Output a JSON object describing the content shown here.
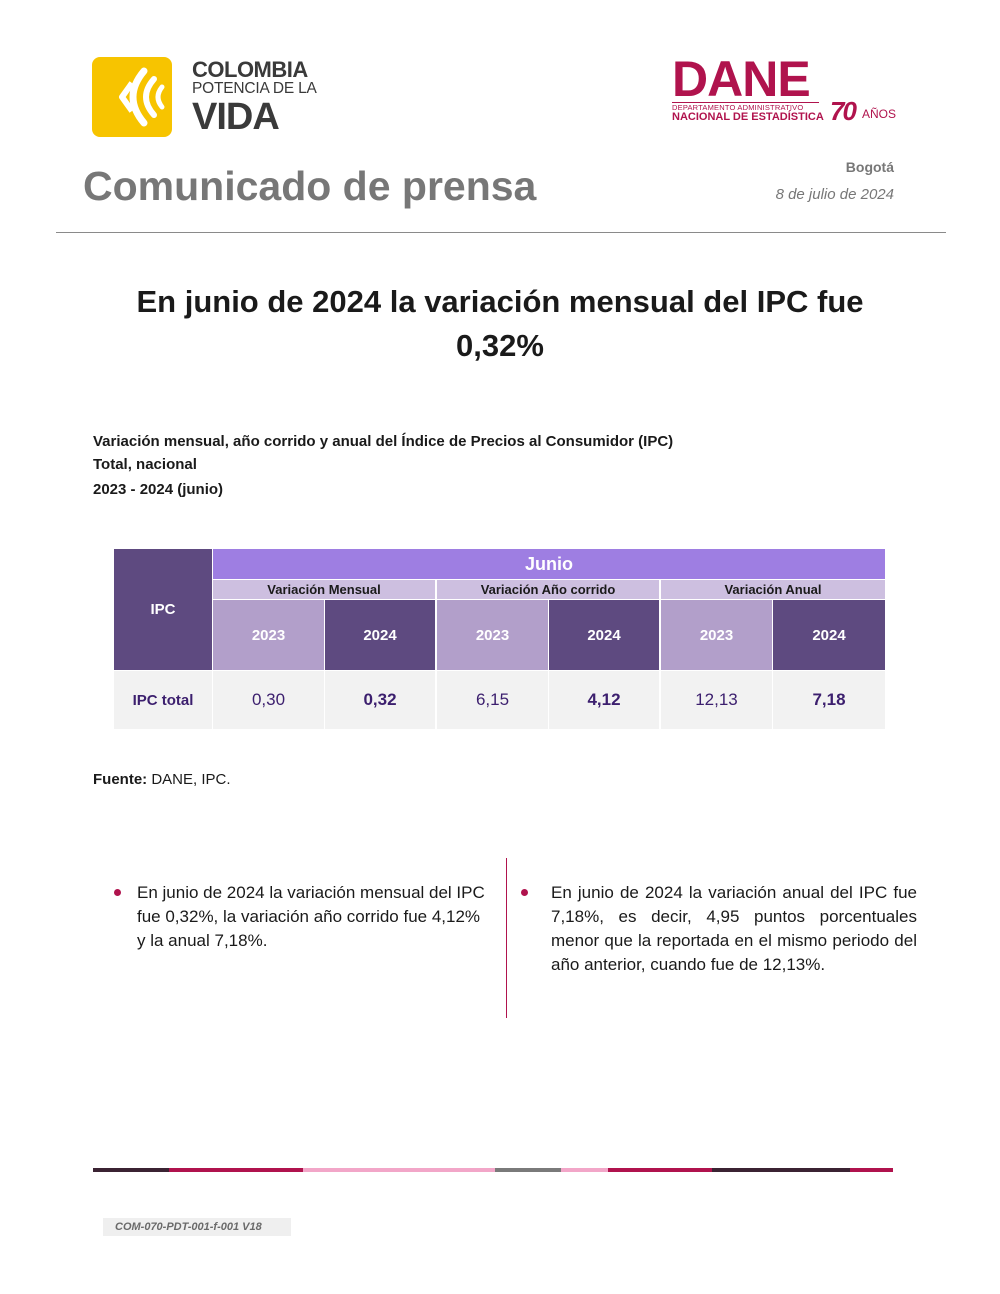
{
  "logos": {
    "colombia": {
      "line1": "COLOMBIA",
      "line2": "POTENCIA DE LA",
      "line3": "VIDA"
    },
    "dane": {
      "word": "DANE",
      "sub1": "DEPARTAMENTO ADMINISTRATIVO",
      "sub2": "NACIONAL DE ESTADÍSTICA",
      "anniversary": "70",
      "anniversary_label": "AÑOS"
    }
  },
  "header": {
    "title": "Comunicado de prensa",
    "city": "Bogotá",
    "date": "8 de julio de 2024"
  },
  "headline": "En junio de 2024 la variación mensual del IPC fue 0,32%",
  "table_caption": {
    "line1": "Variación mensual, año corrido y anual del Índice de Precios al Consumidor (IPC)",
    "line2": "Total, nacional",
    "line3": "2023 - 2024 (junio)"
  },
  "table": {
    "row_header": "IPC",
    "period": "Junio",
    "groups": [
      "Variación Mensual",
      "Variación Año corrido",
      "Variación Anual"
    ],
    "years": [
      "2023",
      "2024",
      "2023",
      "2024",
      "2023",
      "2024"
    ],
    "row_label": "IPC total",
    "values": [
      "0,30",
      "0,32",
      "6,15",
      "4,12",
      "12,13",
      "7,18"
    ]
  },
  "source": {
    "label": "Fuente:",
    "text": "DANE, IPC."
  },
  "bullets": {
    "left": "En junio de 2024 la variación mensual del IPC fue 0,32%, la variación año corrido fue 4,12% y la anual 7,18%.",
    "right": "En junio de 2024 la variación anual del IPC fue 7,18%, es decir, 4,95 puntos porcentuales menor que la reportada en el mismo periodo del año anterior, cuando fue de 12,13%."
  },
  "colors": {
    "dane_magenta": "#b0134d",
    "table_dark_purple": "#5e4a80",
    "table_header_purple": "#9e7ee2",
    "table_light_purple": "#b29fca",
    "colombia_yellow": "#f7c400"
  },
  "footer": {
    "code": "COM-070-PDT-001-f-001 V18"
  }
}
